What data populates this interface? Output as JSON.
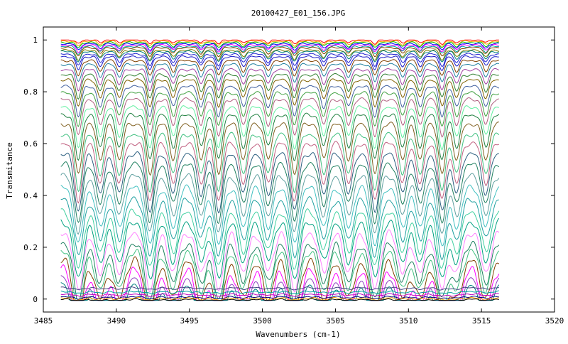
{
  "chart_data": {
    "type": "line",
    "title": "20100427_E01_156.JPG",
    "xlabel": "Wavenumbers (cm-1)",
    "ylabel": "Transmitance",
    "xlim": [
      3485,
      3520
    ],
    "ylim": [
      -0.05,
      1.05
    ],
    "xticks": [
      3485,
      3490,
      3495,
      3500,
      3505,
      3510,
      3515,
      3520
    ],
    "yticks": [
      0,
      0.2,
      0.4,
      0.6,
      0.8,
      1
    ],
    "ytick_labels": [
      "0",
      "0.2",
      "0.4",
      "0.6",
      "0.8",
      "1"
    ],
    "x_range_data": [
      3486.2,
      3516.2
    ],
    "grid": false,
    "legend": "none",
    "absorption_lines": [
      3487.4,
      3488.9,
      3490.2,
      3492.3,
      3493.9,
      3495.8,
      3497.0,
      3498.7,
      3500.4,
      3502.2,
      3504.2,
      3505.9,
      3507.7,
      3509.6,
      3510.8,
      3512.3,
      3513.3,
      3515.3
    ],
    "series_baselines": [
      1.0,
      0.995,
      0.99,
      0.985,
      0.98,
      0.975,
      0.97,
      0.96,
      0.955,
      0.945,
      0.935,
      0.92,
      0.905,
      0.885,
      0.865,
      0.845,
      0.82,
      0.795,
      0.77,
      0.74,
      0.71,
      0.675,
      0.635,
      0.6,
      0.56,
      0.52,
      0.475,
      0.43,
      0.385,
      0.34,
      0.3,
      0.26,
      0.22,
      0.19,
      0.155,
      0.12,
      0.09,
      0.065,
      0.045,
      0.03,
      0.02,
      0.01,
      0.005,
      0.0
    ],
    "series_colors": [
      "#ff0000",
      "#ffa500",
      "#00c000",
      "#0000ff",
      "#ff00ff",
      "#00aaaa",
      "#804000",
      "#808000",
      "#008080",
      "#2020d0",
      "#1818c8",
      "#804000",
      "#2080a0",
      "#a040a0",
      "#308030",
      "#806000",
      "#4060a0",
      "#40a040",
      "#b06080",
      "#60f0a0",
      "#208040",
      "#806020",
      "#40c080",
      "#c06080",
      "#2c6080",
      "#208060",
      "#60a0a0",
      "#40c0c0",
      "#20a0a0",
      "#40d0a0",
      "#00a080",
      "#ff80ff",
      "#208060",
      "#40c080",
      "#804000",
      "#ff00ff",
      "#9040c0",
      "#008080",
      "#404080",
      "#00a0a0",
      "#c000c0",
      "#000080",
      "#ffa500",
      "#000000"
    ]
  }
}
